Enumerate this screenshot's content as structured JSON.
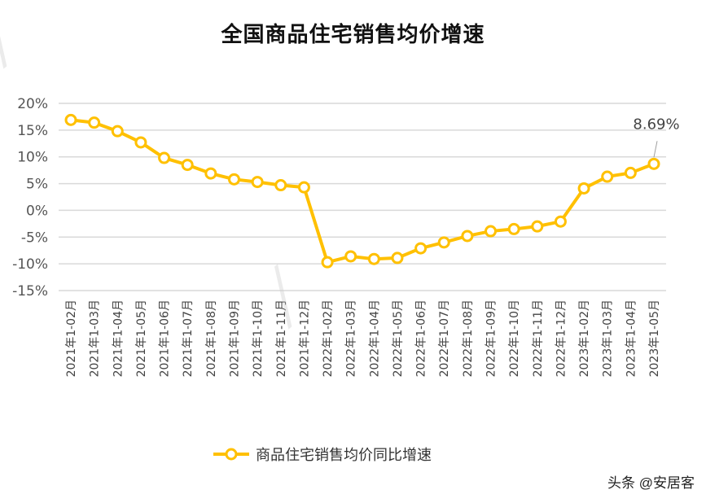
{
  "footer": {
    "credit": "头条 @安居客"
  },
  "chart_data": {
    "type": "line",
    "title": "全国商品住宅销售均价增速",
    "xlabel": "",
    "ylabel": "",
    "categories": [
      "2021年1-02月",
      "2021年1-03月",
      "2021年1-04月",
      "2021年1-05月",
      "2021年1-06月",
      "2021年1-07月",
      "2021年1-08月",
      "2021年1-09月",
      "2021年1-10月",
      "2021年1-11月",
      "2021年1-12月",
      "2022年1-02月",
      "2022年1-03月",
      "2022年1-04月",
      "2022年1-05月",
      "2022年1-06月",
      "2022年1-07月",
      "2022年1-08月",
      "2022年1-09月",
      "2022年1-10月",
      "2022年1-11月",
      "2022年1-12月",
      "2023年1-02月",
      "2023年1-03月",
      "2023年1-04月",
      "2023年1-05月"
    ],
    "series": [
      {
        "name": "商品住宅销售均价同比增速",
        "values": [
          16.9,
          16.4,
          14.8,
          12.7,
          9.8,
          8.5,
          6.9,
          5.8,
          5.3,
          4.7,
          4.3,
          -9.7,
          -8.6,
          -9.1,
          -8.9,
          -7.1,
          -6.0,
          -4.8,
          -3.9,
          -3.5,
          -3.0,
          -2.1,
          4.1,
          6.3,
          7.0,
          8.69
        ],
        "color": "#FFC000"
      }
    ],
    "ylim": [
      -15,
      20
    ],
    "yticks": [
      "20%",
      "15%",
      "10%",
      "5%",
      "0%",
      "-5%",
      "-10%",
      "-15%"
    ],
    "grid": true,
    "legend": "bottom",
    "annotations": [
      {
        "text": "8.69%",
        "category": "2023年1-05月"
      }
    ]
  }
}
